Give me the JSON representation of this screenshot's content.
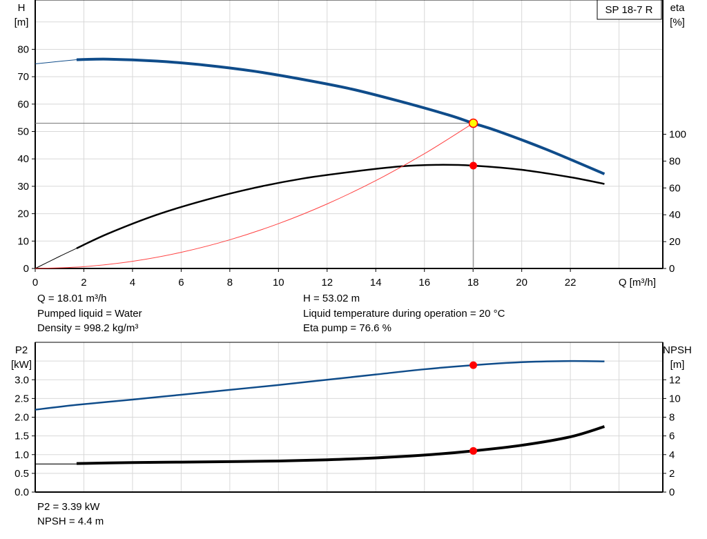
{
  "chart_data": [
    {
      "type": "line",
      "title": "SP 18-7 R",
      "xlabel": "Q [m³/h]",
      "ylabel_left": [
        "H",
        "[m]"
      ],
      "ylabel_right": [
        "eta",
        "[%]"
      ],
      "xlim": [
        0,
        25.8
      ],
      "ylim_left": [
        0,
        98
      ],
      "ylim_right": [
        0,
        200
      ],
      "x_ticks": [
        0,
        2,
        4,
        6,
        8,
        10,
        12,
        14,
        16,
        18,
        20,
        22
      ],
      "y_ticks_left": [
        0,
        10,
        20,
        30,
        40,
        50,
        60,
        70,
        80
      ],
      "y_ticks_right": [
        0,
        20,
        40,
        60,
        80,
        100
      ],
      "grid": true,
      "series": [
        {
          "key": "H",
          "axis": "left",
          "color": "#0f4c8a",
          "x_extrapolated": [
            0,
            1,
            1.7
          ],
          "y_extrapolated": [
            74.7,
            75.6,
            76.2
          ],
          "x": [
            1.7,
            3,
            5,
            7,
            9,
            11,
            13,
            15,
            17,
            18,
            19,
            21,
            23.4
          ],
          "y": [
            76.2,
            76.4,
            75.7,
            74.2,
            72,
            69,
            65.5,
            61,
            56,
            53.02,
            50.2,
            43.5,
            34.5
          ]
        },
        {
          "key": "eta",
          "axis": "right",
          "color": "#000000",
          "x_extrapolated": [
            0,
            1,
            1.7
          ],
          "y_extrapolated": [
            0,
            9,
            15
          ],
          "x": [
            1.7,
            3,
            5,
            7,
            9,
            11,
            13,
            15,
            16.5,
            18,
            20,
            22,
            23.4
          ],
          "y": [
            15,
            26,
            40,
            51,
            60,
            67,
            72,
            76,
            77.2,
            76.6,
            73.5,
            68,
            63
          ]
        },
        {
          "key": "system-curve",
          "axis": "left",
          "color": "#ff4040",
          "x": [
            0,
            2,
            4,
            6,
            8,
            10,
            12,
            14,
            16,
            18
          ],
          "y": [
            0,
            0.65,
            2.62,
            5.89,
            10.47,
            16.36,
            23.56,
            32.07,
            41.89,
            53.02
          ]
        }
      ],
      "duty_point": {
        "Q": 18.01,
        "H": 53.02,
        "eta": 76.6
      }
    },
    {
      "type": "line",
      "xlim": [
        0,
        25.8
      ],
      "ylabel_left": [
        "P2",
        "[kW]"
      ],
      "ylabel_right": [
        "NPSH",
        "[m]"
      ],
      "ylim_left": [
        0,
        4.0
      ],
      "ylim_right": [
        0,
        16
      ],
      "y_ticks_left": [
        "0.0",
        "0.5",
        "1.0",
        "1.5",
        "2.0",
        "2.5",
        "3.0"
      ],
      "y_ticks_right": [
        0,
        2,
        4,
        6,
        8,
        10,
        12
      ],
      "grid": true,
      "series": [
        {
          "key": "P2",
          "axis": "left",
          "color": "#0f4c8a",
          "x": [
            0,
            1.7,
            4,
            6,
            8,
            10,
            12,
            14,
            16,
            18,
            20,
            22,
            23.4
          ],
          "y": [
            2.2,
            2.33,
            2.47,
            2.6,
            2.73,
            2.86,
            3.0,
            3.14,
            3.28,
            3.39,
            3.47,
            3.5,
            3.49
          ]
        },
        {
          "key": "NPSH",
          "axis": "right",
          "color": "#000000",
          "x_extrapolated": [
            0,
            1.7
          ],
          "y_extrapolated": [
            3.0,
            3.0
          ],
          "x": [
            1.7,
            4,
            6,
            8,
            10,
            12,
            14,
            16,
            18,
            20,
            22,
            23.4
          ],
          "y": [
            3.05,
            3.15,
            3.2,
            3.25,
            3.32,
            3.45,
            3.65,
            3.95,
            4.4,
            5.0,
            5.9,
            7.0
          ]
        }
      ],
      "duty_point": {
        "Q": 18.01,
        "P2": 3.39,
        "NPSH": 4.4
      }
    }
  ],
  "info_top": {
    "q": "Q = 18.01 m³/h",
    "liquid": "Pumped liquid = Water",
    "density": "Density = 998.2 kg/m³",
    "h": "H = 53.02 m",
    "temp": "Liquid temperature during operation = 20 °C",
    "eta": "Eta pump = 76.6 %"
  },
  "info_bottom": {
    "p2": "P2 = 3.39 kW",
    "npsh": "NPSH = 4.4 m"
  }
}
